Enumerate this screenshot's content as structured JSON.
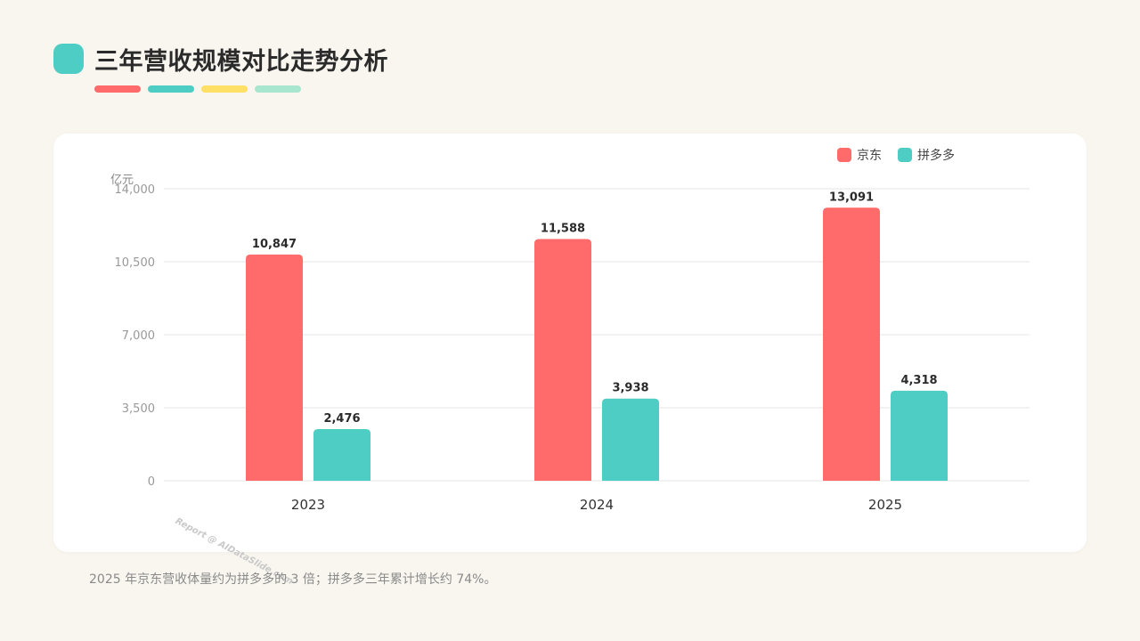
{
  "title": "三年营收规模对比走势分析",
  "colors": {
    "title_icon": "#4ecdc4",
    "pills": [
      "#ff6b6b",
      "#4ecdc4",
      "#ffe066",
      "#a8e6cf"
    ],
    "jd": "#ff6b6b",
    "pdd": "#4ecdc4"
  },
  "legend": [
    {
      "label": "京东",
      "color": "#ff6b6b"
    },
    {
      "label": "拼多多",
      "color": "#4ecdc4"
    }
  ],
  "footnote": "2025 年京东营收体量约为拼多多的 3 倍；拼多多三年累计增长约 74%。",
  "watermark": "Report @ AIDataSlide.com",
  "chart_data": {
    "type": "bar",
    "categories": [
      "2023",
      "2024",
      "2025"
    ],
    "series": [
      {
        "name": "京东",
        "values": [
          10847,
          11588,
          13091
        ],
        "labels": [
          "10,847",
          "11,588",
          "13,091"
        ]
      },
      {
        "name": "拼多多",
        "values": [
          2476,
          3938,
          4318
        ],
        "labels": [
          "2,476",
          "3,938",
          "4,318"
        ]
      }
    ],
    "ylabel": "亿元",
    "ylim": [
      0,
      14000
    ],
    "yticks": [
      0,
      3500,
      7000,
      10500,
      14000
    ],
    "ytick_labels": [
      "0",
      "3,500",
      "7,000",
      "10,500",
      "14,000"
    ],
    "grid": true,
    "legend_position": "top-right"
  }
}
